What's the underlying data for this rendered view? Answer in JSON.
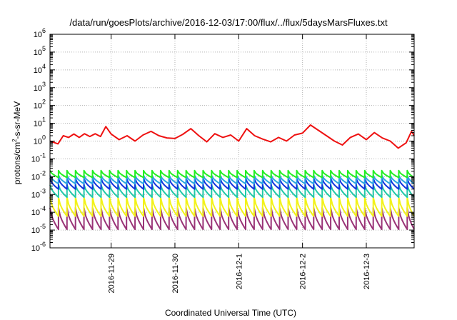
{
  "chart_data": {
    "type": "line",
    "title": "/data/run/goesPlots/archive/2016-12-03/17:00/flux/../flux/5daysMarsFluxes.txt",
    "xlabel": "Coordinated Universal Time (UTC)",
    "ylabel": "protons/cm2-s-sr-MeV",
    "y_scale": "log",
    "ylim": [
      1e-06,
      1000000.0
    ],
    "xlim": [
      "2016-11-28 01:00",
      "2016-12-03 18:00"
    ],
    "x_ticks": [
      "2016-11-29",
      "2016-11-30",
      "2016-12-1",
      "2016-12-2",
      "2016-12-3"
    ],
    "y_ticks": [
      {
        "base": "10",
        "exp": "6"
      },
      {
        "base": "10",
        "exp": "5"
      },
      {
        "base": "10",
        "exp": "4"
      },
      {
        "base": "10",
        "exp": "3"
      },
      {
        "base": "10",
        "exp": "2"
      },
      {
        "base": "10",
        "exp": "1"
      },
      {
        "base": "10",
        "exp": "0"
      },
      {
        "base": "10",
        "exp": "-1"
      },
      {
        "base": "10",
        "exp": "-2"
      },
      {
        "base": "10",
        "exp": "-3"
      },
      {
        "base": "10",
        "exp": "-4"
      },
      {
        "base": "10",
        "exp": "-5"
      },
      {
        "base": "10",
        "exp": "-6"
      }
    ],
    "grid": true,
    "series": [
      {
        "color": "#ee1111",
        "x": [
          "2016-11-28 01:00",
          "2016-11-28 04:00",
          "2016-11-28 06:00",
          "2016-11-28 08:00",
          "2016-11-28 10:00",
          "2016-11-28 12:00",
          "2016-11-28 14:00",
          "2016-11-28 16:00",
          "2016-11-28 18:00",
          "2016-11-28 20:00",
          "2016-11-28 22:00",
          "2016-11-29 00:00",
          "2016-11-29 03:00",
          "2016-11-29 06:00",
          "2016-11-29 09:00",
          "2016-11-29 12:00",
          "2016-11-29 15:00",
          "2016-11-29 18:00",
          "2016-11-29 21:00",
          "2016-11-30 00:00",
          "2016-11-30 03:00",
          "2016-11-30 06:00",
          "2016-11-30 09:00",
          "2016-11-30 12:00",
          "2016-11-30 15:00",
          "2016-11-30 18:00",
          "2016-11-30 21:00",
          "2016-12-01 00:00",
          "2016-12-01 03:00",
          "2016-12-01 06:00",
          "2016-12-01 09:00",
          "2016-12-01 12:00",
          "2016-12-01 15:00",
          "2016-12-01 18:00",
          "2016-12-01 21:00",
          "2016-12-02 00:00",
          "2016-12-02 03:00",
          "2016-12-02 06:00",
          "2016-12-02 09:00",
          "2016-12-02 12:00",
          "2016-12-02 15:00",
          "2016-12-02 18:00",
          "2016-12-02 21:00",
          "2016-12-03 00:00",
          "2016-12-03 03:00",
          "2016-12-03 06:00",
          "2016-12-03 09:00",
          "2016-12-03 12:00",
          "2016-12-03 15:00",
          "2016-12-03 17:00",
          "2016-12-03 18:00"
        ],
        "values": [
          1.0,
          0.7,
          2.0,
          1.6,
          2.5,
          1.6,
          2.6,
          1.8,
          2.6,
          1.8,
          6.5,
          2.5,
          1.2,
          2.0,
          1.0,
          2.2,
          3.5,
          2.0,
          1.5,
          1.4,
          2.4,
          5.0,
          2.0,
          0.9,
          2.6,
          1.6,
          2.2,
          1.0,
          5.0,
          2.0,
          1.3,
          0.9,
          1.6,
          1.0,
          2.2,
          2.8,
          8.0,
          4.0,
          2.0,
          1.0,
          0.6,
          1.6,
          2.5,
          1.2,
          3.0,
          1.5,
          1.0,
          0.4,
          0.8,
          3.5,
          2.0
        ]
      },
      {
        "color": "#22ee22",
        "period_hours": 3.2,
        "peak": 0.022,
        "trough": 0.009
      },
      {
        "color": "#2aa6e0",
        "period_hours": 3.2,
        "peak": 0.012,
        "trough": 0.004
      },
      {
        "color": "#1133dd",
        "period_hours": 3.2,
        "peak": 0.008,
        "trough": 0.002
      },
      {
        "color": "#22c8a8",
        "period_hours": 3.2,
        "peak": 0.0035,
        "trough": 0.0007
      },
      {
        "color": "#f2f21a",
        "period_hours": 3.2,
        "peak": 0.0007,
        "trough": 6e-05
      },
      {
        "color": "#993377",
        "period_hours": 3.2,
        "peak": 0.00018,
        "trough": 1.1e-05
      }
    ]
  }
}
